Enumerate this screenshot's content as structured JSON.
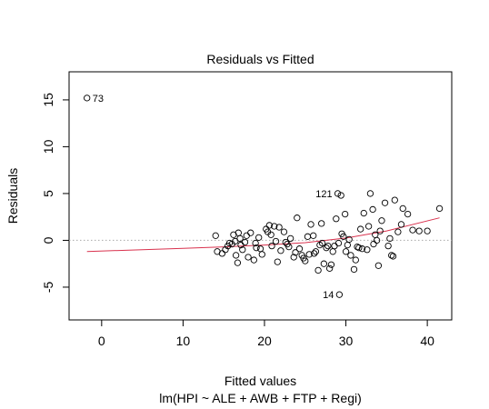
{
  "chart_data": {
    "type": "scatter",
    "title": "Residuals vs Fitted",
    "xlabel": "Fitted values",
    "xsublabel": "lm(HPI ~ ALE + AWB + FTP + Regi)",
    "ylabel": "Residuals",
    "xlim": [
      -4,
      43
    ],
    "ylim": [
      -8.5,
      18
    ],
    "xticks": [
      0,
      10,
      20,
      30,
      40
    ],
    "yticks": [
      -5,
      0,
      5,
      10,
      15
    ],
    "grid": false,
    "legend": "none",
    "reference_line": {
      "y": 0,
      "style": "dotted",
      "color": "#aaaaaa"
    },
    "smoother": {
      "color": "#d9324e",
      "x": [
        -1.8,
        5,
        10,
        15,
        20,
        25,
        30,
        35,
        41.5
      ],
      "y": [
        -1.2,
        -1.0,
        -0.85,
        -0.7,
        -0.5,
        -0.25,
        0.25,
        1.0,
        2.4
      ]
    },
    "labels": [
      {
        "text": "73",
        "x": -1.8,
        "y": 15.2
      },
      {
        "text": "121",
        "x": 29.0,
        "y": 5.0
      },
      {
        "text": "14",
        "x": 29.2,
        "y": -5.8
      }
    ],
    "points": {
      "x": [
        -1.8,
        29.0,
        29.2,
        29.4,
        14.0,
        14.2,
        14.8,
        15.5,
        15.7,
        16.0,
        16.2,
        16.5,
        16.7,
        17.0,
        17.3,
        17.6,
        18.0,
        18.3,
        18.7,
        19.0,
        19.3,
        19.7,
        20.2,
        20.6,
        20.9,
        21.2,
        21.6,
        22.0,
        22.4,
        22.8,
        23.2,
        23.6,
        24.0,
        24.3,
        24.6,
        25.0,
        25.3,
        25.7,
        26.0,
        26.3,
        26.6,
        27.0,
        27.3,
        27.6,
        28.0,
        28.4,
        28.8,
        29.1,
        29.5,
        29.9,
        30.2,
        30.6,
        31.0,
        31.4,
        31.8,
        32.2,
        32.6,
        33.0,
        33.3,
        33.6,
        34.0,
        34.4,
        34.8,
        35.2,
        35.6,
        36.0,
        36.4,
        37.0,
        37.6,
        38.2,
        39.0,
        40.0,
        41.5,
        16.4,
        17.8,
        18.9,
        20.4,
        21.8,
        23.0,
        24.8,
        26.8,
        28.2,
        30.4,
        31.2,
        32.8,
        34.2,
        35.4,
        36.8,
        16.8,
        19.5,
        22.6,
        25.5,
        27.8,
        29.7,
        31.6,
        33.8,
        20.8,
        26.1,
        30.0,
        32.0,
        15.2,
        23.8,
        28.6,
        33.4,
        35.8,
        17.1,
        21.4,
        27.1
      ],
      "y": [
        15.2,
        5.0,
        -5.8,
        4.8,
        0.5,
        -1.2,
        -1.4,
        -0.6,
        -0.3,
        -0.4,
        0.6,
        -1.6,
        -2.4,
        0.2,
        -1.0,
        -0.2,
        -1.8,
        0.8,
        -2.1,
        -0.8,
        0.3,
        -1.5,
        1.2,
        1.6,
        -0.6,
        1.5,
        -2.3,
        -1.1,
        0.9,
        -0.4,
        0.2,
        -1.8,
        2.4,
        -0.9,
        -1.6,
        -2.2,
        0.4,
        1.7,
        0.5,
        -1.2,
        -3.2,
        1.8,
        -2.5,
        -0.8,
        -3.0,
        -1.2,
        2.3,
        -0.3,
        0.7,
        2.8,
        -0.5,
        -1.6,
        -3.1,
        -0.7,
        1.2,
        2.9,
        -1.0,
        5.0,
        3.3,
        0.6,
        -2.7,
        2.1,
        4.0,
        -0.6,
        -1.6,
        4.3,
        0.9,
        3.4,
        2.8,
        1.1,
        1.0,
        1.0,
        3.4,
        -0.1,
        0.5,
        -0.3,
        0.9,
        1.4,
        -0.7,
        -1.9,
        -0.5,
        -2.6,
        0.1,
        -2.1,
        1.5,
        1.0,
        0.2,
        1.7,
        0.8,
        -0.9,
        -0.2,
        -1.5,
        -0.6,
        0.4,
        -0.8,
        0.0,
        0.6,
        -1.4,
        -1.2,
        -0.9,
        -1.0,
        -1.3,
        -0.6,
        -0.4,
        -1.7,
        -0.5,
        -0.1,
        -0.3
      ]
    }
  }
}
